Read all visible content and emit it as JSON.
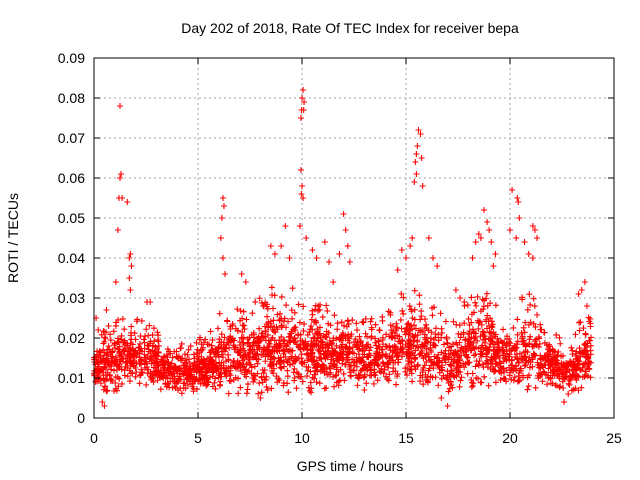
{
  "chart_data": {
    "type": "scatter",
    "title": "Day 202 of 2018, Rate Of TEC Index for receiver bepa",
    "xlabel": "GPS time / hours",
    "ylabel": "ROTI / TECUs",
    "xlim": [
      0,
      25
    ],
    "ylim": [
      0,
      0.09
    ],
    "x_ticks": [
      0,
      5,
      10,
      15,
      20,
      25
    ],
    "x_tick_labels": [
      "0",
      "5",
      "10",
      "15",
      "20",
      "25"
    ],
    "y_ticks": [
      0,
      0.01,
      0.02,
      0.03,
      0.04,
      0.05,
      0.06,
      0.07,
      0.08,
      0.09
    ],
    "y_tick_labels": [
      "0",
      "0.01",
      "0.02",
      "0.03",
      "0.04",
      "0.05",
      "0.06",
      "0.07",
      "0.08",
      "0.09"
    ],
    "grid": true,
    "marker": "+",
    "series_color": "#ff0000",
    "background_band": {
      "hours": [
        0.0,
        0.5,
        1.0,
        1.5,
        2.0,
        2.5,
        3.0,
        3.5,
        4.0,
        4.5,
        5.0,
        5.5,
        6.0,
        6.5,
        7.0,
        7.5,
        8.0,
        8.5,
        9.0,
        9.5,
        10.0,
        10.5,
        11.0,
        11.5,
        12.0,
        12.5,
        13.0,
        13.5,
        14.0,
        14.5,
        15.0,
        15.5,
        16.0,
        16.5,
        17.0,
        17.5,
        18.0,
        18.5,
        19.0,
        19.5,
        20.0,
        20.5,
        21.0,
        21.5,
        22.0,
        22.5,
        23.0,
        23.5,
        23.9
      ],
      "low": [
        0.008,
        0.006,
        0.006,
        0.008,
        0.009,
        0.008,
        0.007,
        0.007,
        0.006,
        0.006,
        0.006,
        0.006,
        0.007,
        0.006,
        0.006,
        0.006,
        0.006,
        0.006,
        0.006,
        0.006,
        0.006,
        0.006,
        0.007,
        0.007,
        0.008,
        0.008,
        0.008,
        0.008,
        0.008,
        0.008,
        0.008,
        0.008,
        0.007,
        0.007,
        0.006,
        0.006,
        0.007,
        0.008,
        0.008,
        0.008,
        0.007,
        0.007,
        0.007,
        0.007,
        0.007,
        0.007,
        0.006,
        0.007,
        0.008
      ],
      "high": [
        0.02,
        0.022,
        0.024,
        0.026,
        0.025,
        0.024,
        0.022,
        0.02,
        0.019,
        0.019,
        0.02,
        0.021,
        0.026,
        0.029,
        0.027,
        0.028,
        0.031,
        0.033,
        0.034,
        0.033,
        0.034,
        0.032,
        0.03,
        0.028,
        0.027,
        0.026,
        0.025,
        0.025,
        0.027,
        0.03,
        0.033,
        0.032,
        0.03,
        0.027,
        0.025,
        0.024,
        0.031,
        0.035,
        0.033,
        0.026,
        0.024,
        0.03,
        0.032,
        0.026,
        0.022,
        0.02,
        0.02,
        0.026,
        0.026
      ]
    },
    "points": [
      [
        0.1,
        0.025
      ],
      [
        0.2,
        0.022
      ],
      [
        0.4,
        0.004
      ],
      [
        0.5,
        0.003
      ],
      [
        0.6,
        0.027
      ],
      [
        0.7,
        0.023
      ],
      [
        1.05,
        0.034
      ],
      [
        1.15,
        0.047
      ],
      [
        1.2,
        0.055
      ],
      [
        1.25,
        0.06
      ],
      [
        1.3,
        0.061
      ],
      [
        1.35,
        0.055
      ],
      [
        1.25,
        0.078
      ],
      [
        1.6,
        0.054
      ],
      [
        1.7,
        0.04
      ],
      [
        1.75,
        0.041
      ],
      [
        1.8,
        0.038
      ],
      [
        1.7,
        0.035
      ],
      [
        1.75,
        0.032
      ],
      [
        2.55,
        0.029
      ],
      [
        2.7,
        0.029
      ],
      [
        6.1,
        0.045
      ],
      [
        6.15,
        0.05
      ],
      [
        6.2,
        0.055
      ],
      [
        6.25,
        0.053
      ],
      [
        6.2,
        0.04
      ],
      [
        6.3,
        0.036
      ],
      [
        7.1,
        0.036
      ],
      [
        7.3,
        0.034
      ],
      [
        8.5,
        0.043
      ],
      [
        8.7,
        0.041
      ],
      [
        9.0,
        0.043
      ],
      [
        9.2,
        0.048
      ],
      [
        9.4,
        0.04
      ],
      [
        9.95,
        0.075
      ],
      [
        9.98,
        0.077
      ],
      [
        10.0,
        0.08
      ],
      [
        10.05,
        0.082
      ],
      [
        10.1,
        0.079
      ],
      [
        10.08,
        0.077
      ],
      [
        9.95,
        0.062
      ],
      [
        10.0,
        0.058
      ],
      [
        9.97,
        0.056
      ],
      [
        10.05,
        0.055
      ],
      [
        9.9,
        0.048
      ],
      [
        10.2,
        0.045
      ],
      [
        10.5,
        0.042
      ],
      [
        10.7,
        0.04
      ],
      [
        11.1,
        0.044
      ],
      [
        11.3,
        0.039
      ],
      [
        11.5,
        0.034
      ],
      [
        11.8,
        0.041
      ],
      [
        12.0,
        0.051
      ],
      [
        12.1,
        0.047
      ],
      [
        12.2,
        0.043
      ],
      [
        12.3,
        0.039
      ],
      [
        14.6,
        0.037
      ],
      [
        14.8,
        0.042
      ],
      [
        15.0,
        0.04
      ],
      [
        15.2,
        0.043
      ],
      [
        15.3,
        0.045
      ],
      [
        15.4,
        0.059
      ],
      [
        15.45,
        0.064
      ],
      [
        15.5,
        0.066
      ],
      [
        15.55,
        0.068
      ],
      [
        15.6,
        0.072
      ],
      [
        15.7,
        0.071
      ],
      [
        15.75,
        0.065
      ],
      [
        15.8,
        0.058
      ],
      [
        15.5,
        0.061
      ],
      [
        16.1,
        0.045
      ],
      [
        16.3,
        0.04
      ],
      [
        16.5,
        0.038
      ],
      [
        17.4,
        0.032
      ],
      [
        17.6,
        0.03
      ],
      [
        17.8,
        0.029
      ],
      [
        18.2,
        0.04
      ],
      [
        18.35,
        0.044
      ],
      [
        18.5,
        0.046
      ],
      [
        18.6,
        0.045
      ],
      [
        18.75,
        0.052
      ],
      [
        18.9,
        0.049
      ],
      [
        19.0,
        0.047
      ],
      [
        19.1,
        0.044
      ],
      [
        19.3,
        0.041
      ],
      [
        19.2,
        0.038
      ],
      [
        20.1,
        0.057
      ],
      [
        20.0,
        0.047
      ],
      [
        20.35,
        0.055
      ],
      [
        20.4,
        0.054
      ],
      [
        20.45,
        0.05
      ],
      [
        20.3,
        0.045
      ],
      [
        20.7,
        0.044
      ],
      [
        20.9,
        0.041
      ],
      [
        21.1,
        0.048
      ],
      [
        21.2,
        0.047
      ],
      [
        21.3,
        0.045
      ],
      [
        21.1,
        0.04
      ],
      [
        22.6,
        0.004
      ],
      [
        22.8,
        0.006
      ],
      [
        23.3,
        0.031
      ],
      [
        23.45,
        0.032
      ],
      [
        23.6,
        0.034
      ],
      [
        23.7,
        0.028
      ],
      [
        17.0,
        0.003
      ],
      [
        16.7,
        0.005
      ],
      [
        13.0,
        0.007
      ],
      [
        8.0,
        0.005
      ]
    ]
  }
}
